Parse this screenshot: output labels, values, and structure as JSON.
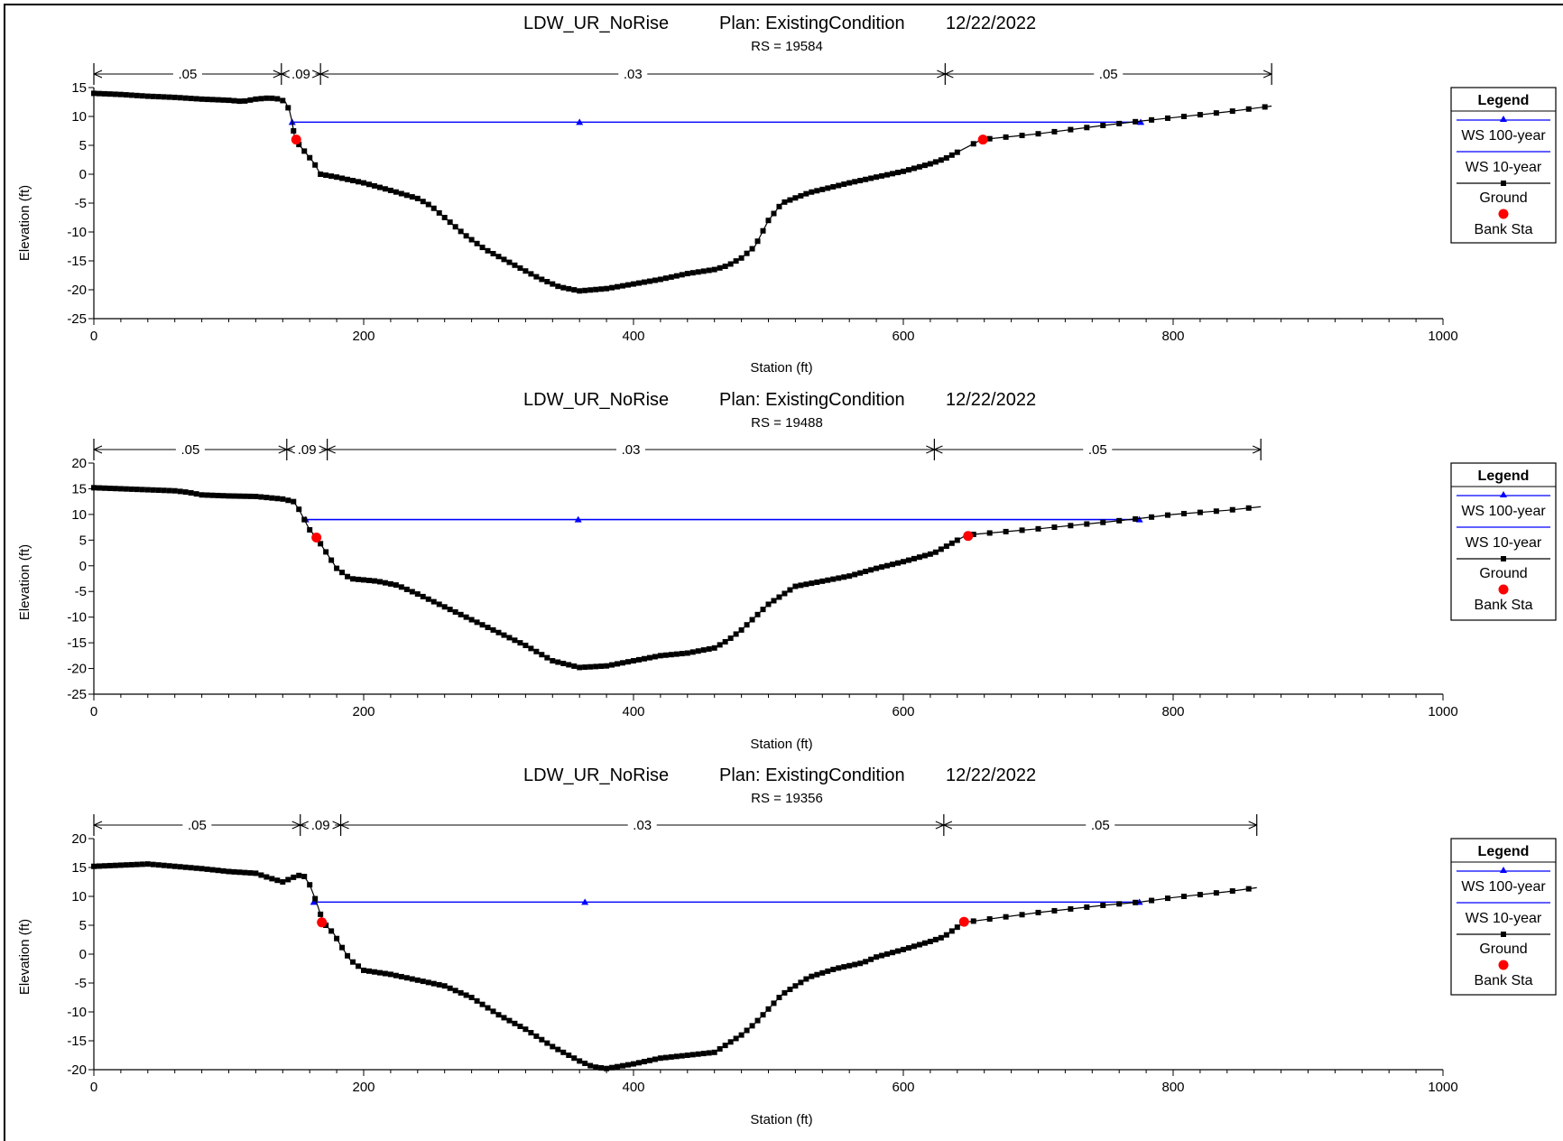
{
  "colors": {
    "ws100": "#0000ff",
    "ws10": "#0000ff",
    "ground": "#000000",
    "bank": "#ff0000"
  },
  "legend": {
    "title": "Legend",
    "items": [
      {
        "label": "WS 100-year",
        "symbol": "triangle",
        "color": "#0000ff"
      },
      {
        "label": "WS 10-year",
        "symbol": "none",
        "color": "#0000ff"
      },
      {
        "label": "Ground",
        "symbol": "square",
        "color": "#000000"
      },
      {
        "label": "Bank Sta",
        "symbol": "circle",
        "color": "#ff0000"
      }
    ]
  },
  "chart_data": [
    {
      "type": "line",
      "title_project": "LDW_UR_NoRise",
      "title_plan": "Plan: ExistingCondition",
      "title_date": "12/22/2022",
      "subtitle": "RS = 19584",
      "xlabel": "Station (ft)",
      "ylabel": "Elevation (ft)",
      "xlim": [
        0,
        1000
      ],
      "ylim": [
        -25,
        15
      ],
      "xticks": [
        0,
        200,
        400,
        600,
        800,
        1000
      ],
      "yticks": [
        -25,
        -20,
        -15,
        -10,
        -5,
        0,
        5,
        10,
        15
      ],
      "mannings": [
        {
          "from": 0,
          "to": 139,
          "label": ".05"
        },
        {
          "from": 139,
          "to": 168,
          "label": ".09"
        },
        {
          "from": 168,
          "to": 631,
          "label": ".03"
        },
        {
          "from": 631,
          "to": 873,
          "label": ".05"
        }
      ],
      "ground": [
        [
          0,
          14
        ],
        [
          20,
          13.8
        ],
        [
          40,
          13.5
        ],
        [
          60,
          13.3
        ],
        [
          80,
          13
        ],
        [
          100,
          12.8
        ],
        [
          110,
          12.6
        ],
        [
          120,
          13
        ],
        [
          130,
          13.2
        ],
        [
          138,
          13
        ],
        [
          142,
          12.5
        ],
        [
          145,
          11
        ],
        [
          147,
          9
        ],
        [
          149,
          6
        ],
        [
          156,
          4
        ],
        [
          163,
          2
        ],
        [
          168,
          0
        ],
        [
          180,
          -0.5
        ],
        [
          200,
          -1.5
        ],
        [
          220,
          -2.8
        ],
        [
          240,
          -4.2
        ],
        [
          250,
          -5.5
        ],
        [
          260,
          -7.5
        ],
        [
          275,
          -10.5
        ],
        [
          290,
          -13
        ],
        [
          310,
          -15.5
        ],
        [
          330,
          -18
        ],
        [
          345,
          -19.5
        ],
        [
          360,
          -20.2
        ],
        [
          380,
          -19.8
        ],
        [
          400,
          -19
        ],
        [
          420,
          -18.2
        ],
        [
          440,
          -17.2
        ],
        [
          460,
          -16.5
        ],
        [
          470,
          -15.8
        ],
        [
          480,
          -14.5
        ],
        [
          490,
          -12.5
        ],
        [
          500,
          -8
        ],
        [
          510,
          -5
        ],
        [
          530,
          -3.2
        ],
        [
          560,
          -1.5
        ],
        [
          580,
          -0.5
        ],
        [
          600,
          0.5
        ],
        [
          620,
          1.8
        ],
        [
          631,
          2.7
        ],
        [
          658,
          6
        ],
        [
          700,
          7
        ],
        [
          750,
          8.5
        ],
        [
          776,
          9.2
        ],
        [
          800,
          9.8
        ],
        [
          840,
          10.8
        ],
        [
          873,
          11.8
        ]
      ],
      "ws100": {
        "elev": 9,
        "from": 147,
        "to": 776,
        "marks": [
          147,
          360,
          776
        ]
      },
      "ws10": {
        "elev": 9,
        "from": 147,
        "to": 776
      },
      "bank_sta": [
        [
          150,
          6
        ],
        [
          659,
          6
        ]
      ]
    },
    {
      "type": "line",
      "title_project": "LDW_UR_NoRise",
      "title_plan": "Plan: ExistingCondition",
      "title_date": "12/22/2022",
      "subtitle": "RS = 19488",
      "xlabel": "Station (ft)",
      "ylabel": "Elevation (ft)",
      "xlim": [
        0,
        1000
      ],
      "ylim": [
        -25,
        20
      ],
      "xticks": [
        0,
        200,
        400,
        600,
        800,
        1000
      ],
      "yticks": [
        -25,
        -20,
        -15,
        -10,
        -5,
        0,
        5,
        10,
        15,
        20
      ],
      "mannings": [
        {
          "from": 0,
          "to": 143,
          "label": ".05"
        },
        {
          "from": 143,
          "to": 173,
          "label": ".09"
        },
        {
          "from": 173,
          "to": 623,
          "label": ".03"
        },
        {
          "from": 623,
          "to": 865,
          "label": ".05"
        }
      ],
      "ground": [
        [
          0,
          15.2
        ],
        [
          20,
          15
        ],
        [
          40,
          14.8
        ],
        [
          60,
          14.6
        ],
        [
          70,
          14.3
        ],
        [
          80,
          13.8
        ],
        [
          100,
          13.6
        ],
        [
          120,
          13.5
        ],
        [
          140,
          13
        ],
        [
          148,
          12.5
        ],
        [
          152,
          11
        ],
        [
          156,
          9
        ],
        [
          160,
          7
        ],
        [
          165,
          5.5
        ],
        [
          170,
          3.5
        ],
        [
          175,
          1.5
        ],
        [
          180,
          -0.5
        ],
        [
          190,
          -2.5
        ],
        [
          210,
          -3
        ],
        [
          225,
          -3.8
        ],
        [
          240,
          -5.5
        ],
        [
          260,
          -8
        ],
        [
          280,
          -10.5
        ],
        [
          300,
          -13
        ],
        [
          320,
          -15.5
        ],
        [
          340,
          -18.5
        ],
        [
          360,
          -19.8
        ],
        [
          380,
          -19.5
        ],
        [
          400,
          -18.5
        ],
        [
          420,
          -17.5
        ],
        [
          440,
          -17
        ],
        [
          460,
          -16
        ],
        [
          470,
          -14.5
        ],
        [
          480,
          -12.5
        ],
        [
          490,
          -10
        ],
        [
          500,
          -7.5
        ],
        [
          520,
          -4
        ],
        [
          540,
          -3
        ],
        [
          560,
          -2
        ],
        [
          580,
          -0.5
        ],
        [
          600,
          0.8
        ],
        [
          623,
          2.5
        ],
        [
          647,
          6
        ],
        [
          700,
          7.2
        ],
        [
          750,
          8.5
        ],
        [
          775,
          9.2
        ],
        [
          800,
          10
        ],
        [
          840,
          10.8
        ],
        [
          865,
          11.5
        ]
      ],
      "ws100": {
        "elev": 9,
        "from": 157,
        "to": 775,
        "marks": [
          157,
          359,
          775
        ]
      },
      "ws10": {
        "elev": 9,
        "from": 157,
        "to": 775
      },
      "bank_sta": [
        [
          165,
          5.5
        ],
        [
          648,
          5.8
        ]
      ]
    },
    {
      "type": "line",
      "title_project": "LDW_UR_NoRise",
      "title_plan": "Plan: ExistingCondition",
      "title_date": "12/22/2022",
      "subtitle": "RS = 19356",
      "xlabel": "Station (ft)",
      "ylabel": "Elevation (ft)",
      "xlim": [
        0,
        1000
      ],
      "ylim": [
        -20,
        20
      ],
      "xticks": [
        0,
        200,
        400,
        600,
        800,
        1000
      ],
      "yticks": [
        -20,
        -15,
        -10,
        -5,
        0,
        5,
        10,
        15,
        20
      ],
      "mannings": [
        {
          "from": 0,
          "to": 153,
          "label": ".05"
        },
        {
          "from": 153,
          "to": 183,
          "label": ".09"
        },
        {
          "from": 183,
          "to": 630,
          "label": ".03"
        },
        {
          "from": 630,
          "to": 862,
          "label": ".05"
        }
      ],
      "ground": [
        [
          0,
          15.2
        ],
        [
          20,
          15.4
        ],
        [
          40,
          15.6
        ],
        [
          60,
          15.2
        ],
        [
          80,
          14.8
        ],
        [
          100,
          14.3
        ],
        [
          120,
          14
        ],
        [
          130,
          13.2
        ],
        [
          140,
          12.5
        ],
        [
          150,
          13.5
        ],
        [
          155,
          13.8
        ],
        [
          160,
          12
        ],
        [
          165,
          9
        ],
        [
          170,
          5.5
        ],
        [
          178,
          3.5
        ],
        [
          183,
          1.5
        ],
        [
          190,
          -1
        ],
        [
          200,
          -2.8
        ],
        [
          220,
          -3.5
        ],
        [
          240,
          -4.5
        ],
        [
          260,
          -5.5
        ],
        [
          280,
          -7.5
        ],
        [
          300,
          -10.5
        ],
        [
          320,
          -13
        ],
        [
          340,
          -16
        ],
        [
          360,
          -18.5
        ],
        [
          370,
          -19.5
        ],
        [
          380,
          -19.8
        ],
        [
          400,
          -19
        ],
        [
          420,
          -18
        ],
        [
          440,
          -17.5
        ],
        [
          460,
          -17
        ],
        [
          470,
          -15.5
        ],
        [
          480,
          -14
        ],
        [
          490,
          -12
        ],
        [
          500,
          -9.5
        ],
        [
          510,
          -7
        ],
        [
          530,
          -4
        ],
        [
          550,
          -2.5
        ],
        [
          570,
          -1.5
        ],
        [
          580,
          -0.5
        ],
        [
          600,
          0.8
        ],
        [
          620,
          2.2
        ],
        [
          630,
          3
        ],
        [
          645,
          5.5
        ],
        [
          700,
          7.2
        ],
        [
          750,
          8.5
        ],
        [
          775,
          9
        ],
        [
          800,
          9.8
        ],
        [
          840,
          10.8
        ],
        [
          862,
          11.5
        ]
      ],
      "ws100": {
        "elev": 9,
        "from": 163,
        "to": 775,
        "marks": [
          163,
          364,
          775
        ]
      },
      "ws10": {
        "elev": 9,
        "from": 163,
        "to": 775
      },
      "bank_sta": [
        [
          169,
          5.5
        ],
        [
          645,
          5.6
        ]
      ]
    }
  ]
}
